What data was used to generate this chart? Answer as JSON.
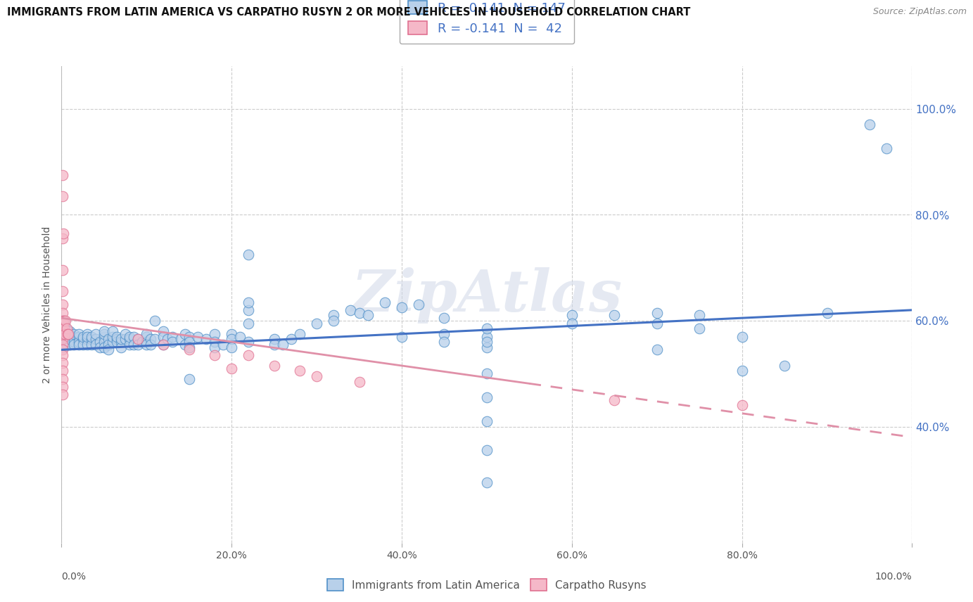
{
  "title": "IMMIGRANTS FROM LATIN AMERICA VS CARPATHO RUSYN 2 OR MORE VEHICLES IN HOUSEHOLD CORRELATION CHART",
  "source": "Source: ZipAtlas.com",
  "ylabel": "2 or more Vehicles in Household",
  "legend_label_blue": "Immigrants from Latin America",
  "legend_label_pink": "Carpatho Rusyns",
  "R_blue": 0.141,
  "N_blue": 147,
  "R_pink": -0.141,
  "N_pink": 42,
  "watermark": "ZipAtlas",
  "blue_fill": "#b8d0ea",
  "pink_fill": "#f5b8c8",
  "blue_edge": "#5090c8",
  "pink_edge": "#e07090",
  "blue_line": "#4472c4",
  "pink_line": "#e090a8",
  "ytick_positions": [
    0.4,
    0.6,
    0.8,
    1.0
  ],
  "xtick_positions": [
    0.0,
    0.2,
    0.4,
    0.6,
    0.8,
    1.0
  ],
  "xlim": [
    0.0,
    1.0
  ],
  "ymin": 0.18,
  "ymax": 1.08,
  "blue_trend_x": [
    0.0,
    1.0
  ],
  "blue_trend_y": [
    0.545,
    0.62
  ],
  "pink_trend_x": [
    0.0,
    1.0
  ],
  "pink_trend_y": [
    0.605,
    0.38
  ],
  "blue_scatter": [
    [
      0.001,
      0.6
    ],
    [
      0.001,
      0.575
    ],
    [
      0.001,
      0.59
    ],
    [
      0.001,
      0.565
    ],
    [
      0.001,
      0.555
    ],
    [
      0.002,
      0.595
    ],
    [
      0.002,
      0.58
    ],
    [
      0.002,
      0.57
    ],
    [
      0.002,
      0.56
    ],
    [
      0.002,
      0.55
    ],
    [
      0.003,
      0.585
    ],
    [
      0.003,
      0.575
    ],
    [
      0.003,
      0.565
    ],
    [
      0.003,
      0.555
    ],
    [
      0.003,
      0.6
    ],
    [
      0.004,
      0.58
    ],
    [
      0.004,
      0.57
    ],
    [
      0.004,
      0.59
    ],
    [
      0.004,
      0.565
    ],
    [
      0.005,
      0.575
    ],
    [
      0.005,
      0.56
    ],
    [
      0.005,
      0.585
    ],
    [
      0.006,
      0.57
    ],
    [
      0.006,
      0.58
    ],
    [
      0.006,
      0.56
    ],
    [
      0.006,
      0.555
    ],
    [
      0.007,
      0.575
    ],
    [
      0.007,
      0.565
    ],
    [
      0.007,
      0.555
    ],
    [
      0.008,
      0.57
    ],
    [
      0.008,
      0.56
    ],
    [
      0.008,
      0.58
    ],
    [
      0.009,
      0.565
    ],
    [
      0.009,
      0.575
    ],
    [
      0.01,
      0.57
    ],
    [
      0.01,
      0.56
    ],
    [
      0.01,
      0.58
    ],
    [
      0.01,
      0.555
    ],
    [
      0.01,
      0.565
    ],
    [
      0.015,
      0.57
    ],
    [
      0.015,
      0.56
    ],
    [
      0.015,
      0.575
    ],
    [
      0.015,
      0.555
    ],
    [
      0.02,
      0.57
    ],
    [
      0.02,
      0.56
    ],
    [
      0.02,
      0.575
    ],
    [
      0.02,
      0.555
    ],
    [
      0.025,
      0.565
    ],
    [
      0.025,
      0.555
    ],
    [
      0.025,
      0.57
    ],
    [
      0.03,
      0.565
    ],
    [
      0.03,
      0.555
    ],
    [
      0.03,
      0.575
    ],
    [
      0.03,
      0.57
    ],
    [
      0.035,
      0.565
    ],
    [
      0.035,
      0.555
    ],
    [
      0.035,
      0.57
    ],
    [
      0.04,
      0.565
    ],
    [
      0.04,
      0.555
    ],
    [
      0.04,
      0.575
    ],
    [
      0.045,
      0.56
    ],
    [
      0.045,
      0.55
    ],
    [
      0.05,
      0.57
    ],
    [
      0.05,
      0.56
    ],
    [
      0.05,
      0.55
    ],
    [
      0.05,
      0.575
    ],
    [
      0.05,
      0.58
    ],
    [
      0.055,
      0.565
    ],
    [
      0.055,
      0.555
    ],
    [
      0.055,
      0.545
    ],
    [
      0.06,
      0.56
    ],
    [
      0.06,
      0.57
    ],
    [
      0.06,
      0.58
    ],
    [
      0.065,
      0.565
    ],
    [
      0.065,
      0.56
    ],
    [
      0.065,
      0.57
    ],
    [
      0.07,
      0.56
    ],
    [
      0.07,
      0.55
    ],
    [
      0.07,
      0.565
    ],
    [
      0.075,
      0.565
    ],
    [
      0.075,
      0.575
    ],
    [
      0.08,
      0.565
    ],
    [
      0.08,
      0.555
    ],
    [
      0.08,
      0.57
    ],
    [
      0.085,
      0.57
    ],
    [
      0.085,
      0.555
    ],
    [
      0.09,
      0.565
    ],
    [
      0.09,
      0.555
    ],
    [
      0.095,
      0.56
    ],
    [
      0.1,
      0.57
    ],
    [
      0.1,
      0.56
    ],
    [
      0.1,
      0.555
    ],
    [
      0.1,
      0.575
    ],
    [
      0.105,
      0.565
    ],
    [
      0.105,
      0.555
    ],
    [
      0.11,
      0.565
    ],
    [
      0.11,
      0.6
    ],
    [
      0.12,
      0.58
    ],
    [
      0.12,
      0.57
    ],
    [
      0.12,
      0.555
    ],
    [
      0.125,
      0.565
    ],
    [
      0.13,
      0.57
    ],
    [
      0.13,
      0.56
    ],
    [
      0.14,
      0.565
    ],
    [
      0.145,
      0.575
    ],
    [
      0.145,
      0.555
    ],
    [
      0.15,
      0.57
    ],
    [
      0.15,
      0.56
    ],
    [
      0.15,
      0.55
    ],
    [
      0.16,
      0.57
    ],
    [
      0.17,
      0.565
    ],
    [
      0.18,
      0.575
    ],
    [
      0.18,
      0.56
    ],
    [
      0.18,
      0.55
    ],
    [
      0.19,
      0.555
    ],
    [
      0.2,
      0.575
    ],
    [
      0.2,
      0.565
    ],
    [
      0.2,
      0.55
    ],
    [
      0.21,
      0.57
    ],
    [
      0.22,
      0.56
    ],
    [
      0.22,
      0.595
    ],
    [
      0.22,
      0.62
    ],
    [
      0.22,
      0.635
    ],
    [
      0.25,
      0.565
    ],
    [
      0.25,
      0.555
    ],
    [
      0.26,
      0.555
    ],
    [
      0.27,
      0.565
    ],
    [
      0.28,
      0.575
    ],
    [
      0.15,
      0.49
    ],
    [
      0.3,
      0.595
    ],
    [
      0.32,
      0.61
    ],
    [
      0.32,
      0.6
    ],
    [
      0.34,
      0.62
    ],
    [
      0.35,
      0.615
    ],
    [
      0.36,
      0.61
    ],
    [
      0.38,
      0.635
    ],
    [
      0.4,
      0.57
    ],
    [
      0.4,
      0.625
    ],
    [
      0.42,
      0.63
    ],
    [
      0.45,
      0.575
    ],
    [
      0.45,
      0.56
    ],
    [
      0.45,
      0.605
    ],
    [
      0.5,
      0.57
    ],
    [
      0.5,
      0.55
    ],
    [
      0.5,
      0.56
    ],
    [
      0.5,
      0.585
    ],
    [
      0.5,
      0.5
    ],
    [
      0.5,
      0.455
    ],
    [
      0.5,
      0.41
    ],
    [
      0.5,
      0.355
    ],
    [
      0.5,
      0.295
    ],
    [
      0.6,
      0.61
    ],
    [
      0.6,
      0.595
    ],
    [
      0.65,
      0.61
    ],
    [
      0.7,
      0.615
    ],
    [
      0.7,
      0.595
    ],
    [
      0.7,
      0.545
    ],
    [
      0.75,
      0.61
    ],
    [
      0.75,
      0.585
    ],
    [
      0.8,
      0.57
    ],
    [
      0.8,
      0.505
    ],
    [
      0.85,
      0.515
    ],
    [
      0.9,
      0.615
    ],
    [
      0.22,
      0.725
    ],
    [
      0.95,
      0.97
    ],
    [
      0.97,
      0.925
    ]
  ],
  "pink_scatter": [
    [
      0.001,
      0.875
    ],
    [
      0.001,
      0.835
    ],
    [
      0.001,
      0.755
    ],
    [
      0.002,
      0.765
    ],
    [
      0.001,
      0.695
    ],
    [
      0.001,
      0.655
    ],
    [
      0.001,
      0.63
    ],
    [
      0.001,
      0.615
    ],
    [
      0.001,
      0.6
    ],
    [
      0.001,
      0.59
    ],
    [
      0.001,
      0.575
    ],
    [
      0.001,
      0.565
    ],
    [
      0.001,
      0.555
    ],
    [
      0.001,
      0.545
    ],
    [
      0.001,
      0.535
    ],
    [
      0.001,
      0.52
    ],
    [
      0.001,
      0.505
    ],
    [
      0.001,
      0.49
    ],
    [
      0.001,
      0.475
    ],
    [
      0.001,
      0.46
    ],
    [
      0.002,
      0.595
    ],
    [
      0.002,
      0.58
    ],
    [
      0.003,
      0.6
    ],
    [
      0.003,
      0.585
    ],
    [
      0.004,
      0.575
    ],
    [
      0.005,
      0.6
    ],
    [
      0.006,
      0.585
    ],
    [
      0.007,
      0.575
    ],
    [
      0.008,
      0.575
    ],
    [
      0.09,
      0.565
    ],
    [
      0.12,
      0.555
    ],
    [
      0.15,
      0.545
    ],
    [
      0.18,
      0.535
    ],
    [
      0.2,
      0.51
    ],
    [
      0.22,
      0.535
    ],
    [
      0.25,
      0.515
    ],
    [
      0.28,
      0.505
    ],
    [
      0.3,
      0.495
    ],
    [
      0.35,
      0.485
    ],
    [
      0.65,
      0.45
    ],
    [
      0.8,
      0.44
    ]
  ]
}
